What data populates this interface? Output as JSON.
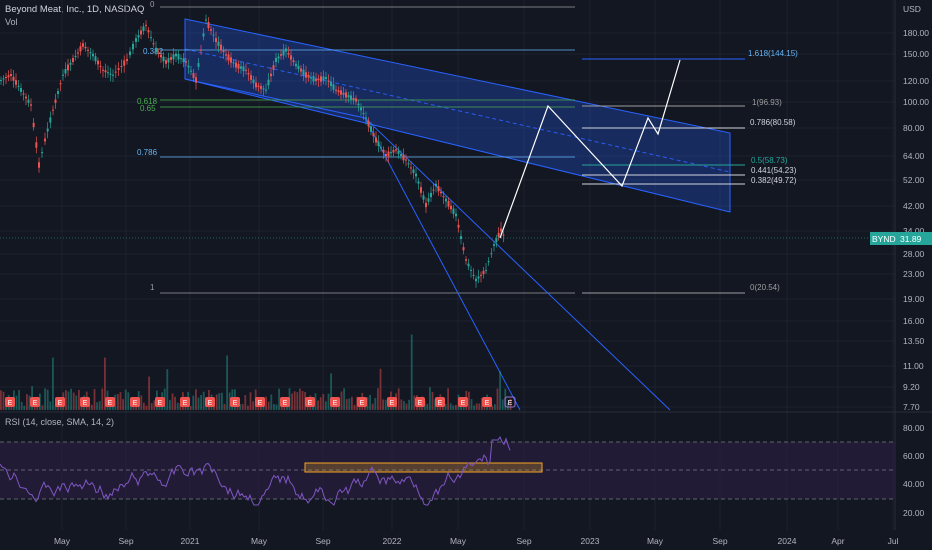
{
  "header": {
    "title": "Beyond Meat, Inc., 1D, NASDAQ",
    "volume_label": "Vol",
    "rsi_label": "RSI (14, close, SMA, 14, 2)",
    "currency": "USD"
  },
  "colors": {
    "background": "#131722",
    "grid": "#1e222d",
    "up": "#26a69a",
    "down": "#ef5350",
    "channel": "#2962ff",
    "rsi_line": "#7e57c2",
    "rsi_band": "#2a1e3f",
    "highlight": "#f5a623",
    "fib_green": "#4caf50",
    "fib_blue": "#64b5f6",
    "fib_gray": "#9e9e9e",
    "projection": "#ffffff"
  },
  "price_axis": {
    "ticks": [
      "180.00",
      "150.00",
      "120.00",
      "100.00",
      "80.00",
      "64.00",
      "52.00",
      "42.00",
      "34.00",
      "28.00",
      "23.00",
      "19.00",
      "16.00",
      "13.50",
      "11.00",
      "9.20",
      "7.70"
    ],
    "scale": "log"
  },
  "last_price": {
    "symbol": "BYND",
    "value": "31.89"
  },
  "time_axis": [
    "May",
    "Sep",
    "2021",
    "May",
    "Sep",
    "2022",
    "May",
    "Sep",
    "2023",
    "May",
    "Sep",
    "2024",
    "Apr",
    "Jul"
  ],
  "rsi_axis": [
    "80.00",
    "60.00",
    "40.00",
    "20.00"
  ],
  "fib_left": [
    {
      "label": "0",
      "color": "#9e9e9e"
    },
    {
      "label": "0.382",
      "color": "#64b5f6"
    },
    {
      "label": "0.618",
      "color": "#4caf50"
    },
    {
      "label": "0.65",
      "color": "#4caf50"
    },
    {
      "label": "0.786",
      "color": "#64b5f6"
    },
    {
      "label": "1",
      "color": "#9e9e9e"
    }
  ],
  "fib_right": [
    {
      "label": "1.618(144.15)",
      "color": "#64b5f6"
    },
    {
      "label": "1(96.93)",
      "color": "#9e9e9e"
    },
    {
      "label": "0.786(80.58)",
      "color": "#d1d4dc"
    },
    {
      "label": "0.5(58.73)",
      "color": "#26a69a"
    },
    {
      "label": "0.441(54.23)",
      "color": "#d1d4dc"
    },
    {
      "label": "0.382(49.72)",
      "color": "#d1d4dc"
    },
    {
      "label": "0(20.54)",
      "color": "#9e9e9e"
    }
  ],
  "earnings_marker": "E",
  "chart_data": {
    "type": "line",
    "title": "Beyond Meat, Inc., 1D, NASDAQ",
    "price": {
      "x": [
        "2020-04",
        "2020-05",
        "2020-06",
        "2020-07",
        "2020-08",
        "2020-09",
        "2020-10",
        "2020-11",
        "2020-12",
        "2021-01",
        "2021-02",
        "2021-03",
        "2021-04",
        "2021-05",
        "2021-06",
        "2021-07",
        "2021-08",
        "2021-09",
        "2021-10",
        "2021-11",
        "2021-12",
        "2022-01",
        "2022-02",
        "2022-03",
        "2022-04",
        "2022-05",
        "2022-06",
        "2022-07"
      ],
      "y": [
        80,
        75,
        128,
        130,
        150,
        165,
        175,
        150,
        125,
        190,
        150,
        135,
        130,
        115,
        145,
        130,
        120,
        110,
        100,
        80,
        65,
        62,
        45,
        48,
        42,
        21,
        25,
        31.89
      ]
    },
    "fib_levels": [
      {
        "level": 1.618,
        "value": 144.15
      },
      {
        "level": 1,
        "value": 96.93
      },
      {
        "level": 0.786,
        "value": 80.58
      },
      {
        "level": 0.5,
        "value": 58.73
      },
      {
        "level": 0.441,
        "value": 54.23
      },
      {
        "level": 0.382,
        "value": 49.72
      },
      {
        "level": 0,
        "value": 20.54
      }
    ],
    "rsi": {
      "ylim": [
        10,
        90
      ],
      "bands": [
        30,
        50,
        70
      ]
    }
  }
}
